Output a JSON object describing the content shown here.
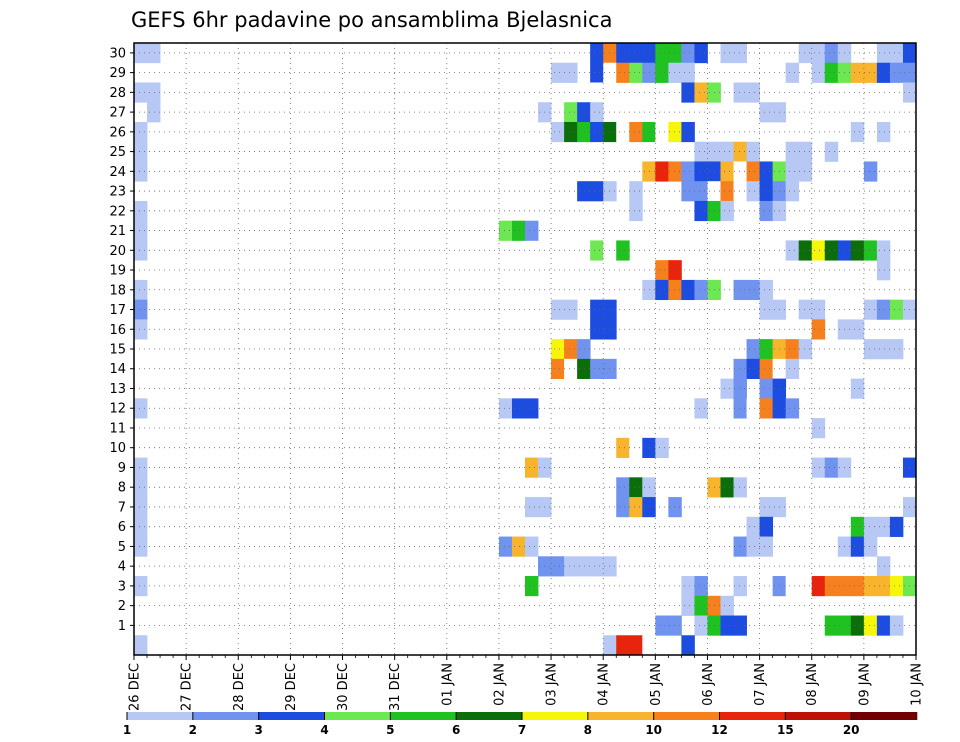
{
  "chart_data": {
    "type": "heatmap",
    "title": "GEFS 6hr padavine po ansamblima Bjelasnica",
    "xlabel": "",
    "ylabel": "",
    "x_tick_labels": [
      "26 DEC",
      "27 DEC",
      "28 DEC",
      "29 DEC",
      "30 DEC",
      "31 DEC",
      "01 JAN",
      "02 JAN",
      "03 JAN",
      "04 JAN",
      "05 JAN",
      "06 JAN",
      "07 JAN",
      "08 JAN",
      "09 JAN",
      "10 JAN"
    ],
    "y_tick_labels": [
      "1",
      "2",
      "3",
      "4",
      "5",
      "6",
      "7",
      "8",
      "9",
      "10",
      "11",
      "12",
      "13",
      "14",
      "15",
      "16",
      "17",
      "18",
      "19",
      "20",
      "21",
      "22",
      "23",
      "24",
      "25",
      "26",
      "27",
      "28",
      "29",
      "30"
    ],
    "ylim": [
      0,
      30
    ],
    "steps_per_day": 4,
    "n_steps": 60,
    "grid": true,
    "legend": {
      "position": "bottom",
      "tick_labels": [
        "1",
        "2",
        "3",
        "4",
        "5",
        "6",
        "7",
        "8",
        "10",
        "12",
        "15",
        "20"
      ],
      "colors": [
        "#b7c8f5",
        "#6f93ef",
        "#1c4ce0",
        "#6ee852",
        "#1fc220",
        "#0b6e0b",
        "#f6f60a",
        "#f7b42c",
        "#f6801e",
        "#e8240d",
        "#bd1108",
        "#730000"
      ]
    },
    "levels": [
      1,
      2,
      3,
      4,
      5,
      6,
      7,
      8,
      10,
      12,
      15,
      20
    ],
    "member_rows": [
      {
        "member": 30,
        "cells": [
          [
            0,
            1
          ],
          [
            1,
            1
          ],
          [
            35,
            3
          ],
          [
            36,
            10
          ],
          [
            37,
            3
          ],
          [
            38,
            3
          ],
          [
            39,
            3
          ],
          [
            40,
            5
          ],
          [
            41,
            5
          ],
          [
            42,
            2
          ],
          [
            43,
            3
          ],
          [
            45,
            1
          ],
          [
            46,
            1
          ],
          [
            51,
            1
          ],
          [
            52,
            1
          ],
          [
            53,
            2
          ],
          [
            54,
            1
          ],
          [
            57,
            1
          ],
          [
            58,
            1
          ],
          [
            59,
            3
          ]
        ]
      },
      {
        "member": 29,
        "cells": [
          [
            32,
            1
          ],
          [
            33,
            1
          ],
          [
            35,
            3
          ],
          [
            36,
            11
          ],
          [
            37,
            10
          ],
          [
            38,
            4
          ],
          [
            39,
            2
          ],
          [
            40,
            5
          ],
          [
            41,
            1
          ],
          [
            42,
            1
          ],
          [
            50,
            1
          ],
          [
            52,
            1
          ],
          [
            53,
            5
          ],
          [
            54,
            4
          ],
          [
            55,
            8
          ],
          [
            56,
            8
          ],
          [
            57,
            3
          ],
          [
            58,
            2
          ],
          [
            59,
            2
          ]
        ]
      },
      {
        "member": 28,
        "cells": [
          [
            0,
            1
          ],
          [
            1,
            1
          ],
          [
            35,
            9
          ],
          [
            42,
            3
          ],
          [
            43,
            8
          ],
          [
            44,
            4
          ],
          [
            46,
            1
          ],
          [
            47,
            1
          ],
          [
            59,
            1
          ]
        ]
      },
      {
        "member": 27,
        "cells": [
          [
            1,
            1
          ],
          [
            31,
            1
          ],
          [
            33,
            4
          ],
          [
            34,
            3
          ],
          [
            35,
            1
          ],
          [
            48,
            1
          ],
          [
            49,
            1
          ]
        ]
      },
      {
        "member": 26,
        "cells": [
          [
            0,
            1
          ],
          [
            32,
            1
          ],
          [
            33,
            6
          ],
          [
            34,
            5
          ],
          [
            35,
            3
          ],
          [
            36,
            6
          ],
          [
            37,
            11
          ],
          [
            38,
            10
          ],
          [
            39,
            5
          ],
          [
            40,
            11
          ],
          [
            41,
            7
          ],
          [
            42,
            3
          ],
          [
            55,
            1
          ],
          [
            57,
            1
          ]
        ]
      },
      {
        "member": 25,
        "cells": [
          [
            0,
            1
          ],
          [
            43,
            1
          ],
          [
            44,
            1
          ],
          [
            45,
            1
          ],
          [
            46,
            8
          ],
          [
            47,
            1
          ],
          [
            50,
            1
          ],
          [
            51,
            1
          ],
          [
            53,
            1
          ]
        ]
      },
      {
        "member": 24,
        "cells": [
          [
            0,
            1
          ],
          [
            39,
            8
          ],
          [
            40,
            12
          ],
          [
            41,
            10
          ],
          [
            42,
            2
          ],
          [
            43,
            3
          ],
          [
            44,
            3
          ],
          [
            45,
            8
          ],
          [
            46,
            11
          ],
          [
            47,
            10
          ],
          [
            48,
            3
          ],
          [
            49,
            4
          ],
          [
            50,
            1
          ],
          [
            51,
            1
          ],
          [
            56,
            2
          ]
        ]
      },
      {
        "member": 23,
        "cells": [
          [
            34,
            3
          ],
          [
            35,
            3
          ],
          [
            36,
            1
          ],
          [
            38,
            1
          ],
          [
            42,
            2
          ],
          [
            43,
            2
          ],
          [
            44,
            11
          ],
          [
            45,
            10
          ],
          [
            46,
            11
          ],
          [
            47,
            1
          ],
          [
            48,
            3
          ],
          [
            49,
            2
          ],
          [
            50,
            1
          ]
        ]
      },
      {
        "member": 22,
        "cells": [
          [
            0,
            1
          ],
          [
            38,
            1
          ],
          [
            43,
            3
          ],
          [
            44,
            5
          ],
          [
            45,
            1
          ],
          [
            48,
            2
          ],
          [
            49,
            1
          ]
        ]
      },
      {
        "member": 21,
        "cells": [
          [
            0,
            1
          ],
          [
            28,
            4
          ],
          [
            29,
            5
          ],
          [
            30,
            2
          ]
        ]
      },
      {
        "member": 20,
        "cells": [
          [
            0,
            1
          ],
          [
            35,
            4
          ],
          [
            36,
            11
          ],
          [
            37,
            5
          ],
          [
            50,
            1
          ],
          [
            51,
            6
          ],
          [
            52,
            7
          ],
          [
            53,
            6
          ],
          [
            54,
            3
          ],
          [
            55,
            6
          ],
          [
            56,
            5
          ],
          [
            57,
            1
          ]
        ]
      },
      {
        "member": 19,
        "cells": [
          [
            40,
            10
          ],
          [
            41,
            12
          ],
          [
            57,
            1
          ]
        ]
      },
      {
        "member": 18,
        "cells": [
          [
            0,
            1
          ],
          [
            39,
            1
          ],
          [
            40,
            3
          ],
          [
            41,
            10
          ],
          [
            42,
            3
          ],
          [
            43,
            2
          ],
          [
            44,
            4
          ],
          [
            46,
            2
          ],
          [
            47,
            2
          ],
          [
            48,
            1
          ]
        ]
      },
      {
        "member": 17,
        "cells": [
          [
            0,
            2
          ],
          [
            32,
            1
          ],
          [
            33,
            1
          ],
          [
            35,
            3
          ],
          [
            36,
            3
          ],
          [
            48,
            1
          ],
          [
            49,
            1
          ],
          [
            51,
            1
          ],
          [
            52,
            1
          ],
          [
            56,
            1
          ],
          [
            57,
            2
          ],
          [
            58,
            4
          ],
          [
            59,
            1
          ]
        ]
      },
      {
        "member": 16,
        "cells": [
          [
            0,
            1
          ],
          [
            35,
            3
          ],
          [
            36,
            3
          ],
          [
            51,
            9
          ],
          [
            52,
            10
          ],
          [
            54,
            1
          ],
          [
            55,
            1
          ]
        ]
      },
      {
        "member": 15,
        "cells": [
          [
            32,
            7
          ],
          [
            33,
            10
          ],
          [
            34,
            2
          ],
          [
            47,
            2
          ],
          [
            48,
            5
          ],
          [
            49,
            8
          ],
          [
            50,
            10
          ],
          [
            51,
            1
          ],
          [
            56,
            1
          ],
          [
            57,
            1
          ],
          [
            58,
            1
          ]
        ]
      },
      {
        "member": 14,
        "cells": [
          [
            32,
            10
          ],
          [
            33,
            11
          ],
          [
            34,
            6
          ],
          [
            35,
            2
          ],
          [
            36,
            2
          ],
          [
            46,
            2
          ],
          [
            47,
            3
          ],
          [
            48,
            10
          ],
          [
            49,
            11
          ],
          [
            50,
            1
          ]
        ]
      },
      {
        "member": 13,
        "cells": [
          [
            45,
            1
          ],
          [
            46,
            2
          ],
          [
            48,
            2
          ],
          [
            49,
            3
          ],
          [
            55,
            1
          ]
        ]
      },
      {
        "member": 12,
        "cells": [
          [
            0,
            1
          ],
          [
            28,
            1
          ],
          [
            29,
            3
          ],
          [
            30,
            3
          ],
          [
            43,
            1
          ],
          [
            46,
            2
          ],
          [
            47,
            9
          ],
          [
            48,
            10
          ],
          [
            49,
            3
          ],
          [
            50,
            2
          ]
        ]
      },
      {
        "member": 11,
        "cells": [
          [
            52,
            1
          ]
        ]
      },
      {
        "member": 10,
        "cells": [
          [
            36,
            9
          ],
          [
            37,
            8
          ],
          [
            38,
            9
          ],
          [
            39,
            3
          ],
          [
            40,
            1
          ]
        ]
      },
      {
        "member": 9,
        "cells": [
          [
            0,
            1
          ],
          [
            30,
            8
          ],
          [
            31,
            1
          ],
          [
            52,
            1
          ],
          [
            53,
            2
          ],
          [
            54,
            1
          ],
          [
            59,
            3
          ]
        ]
      },
      {
        "member": 8,
        "cells": [
          [
            0,
            1
          ],
          [
            37,
            2
          ],
          [
            38,
            6
          ],
          [
            39,
            1
          ],
          [
            44,
            8
          ],
          [
            45,
            6
          ],
          [
            46,
            1
          ]
        ]
      },
      {
        "member": 7,
        "cells": [
          [
            0,
            1
          ],
          [
            30,
            1
          ],
          [
            31,
            1
          ],
          [
            37,
            2
          ],
          [
            38,
            8
          ],
          [
            39,
            3
          ],
          [
            41,
            2
          ],
          [
            48,
            1
          ],
          [
            49,
            1
          ],
          [
            59,
            1
          ]
        ]
      },
      {
        "member": 6,
        "cells": [
          [
            0,
            1
          ],
          [
            47,
            1
          ],
          [
            48,
            3
          ],
          [
            55,
            5
          ],
          [
            56,
            1
          ],
          [
            57,
            1
          ],
          [
            58,
            3
          ]
        ]
      },
      {
        "member": 5,
        "cells": [
          [
            0,
            1
          ],
          [
            28,
            2
          ],
          [
            29,
            8
          ],
          [
            30,
            1
          ],
          [
            46,
            2
          ],
          [
            47,
            1
          ],
          [
            48,
            1
          ],
          [
            54,
            1
          ],
          [
            55,
            3
          ],
          [
            56,
            1
          ]
        ]
      },
      {
        "member": 4,
        "cells": [
          [
            31,
            2
          ],
          [
            32,
            2
          ],
          [
            33,
            1
          ],
          [
            34,
            1
          ],
          [
            35,
            1
          ],
          [
            36,
            1
          ],
          [
            57,
            1
          ]
        ]
      },
      {
        "member": 3,
        "cells": [
          [
            0,
            1
          ],
          [
            30,
            5
          ],
          [
            42,
            1
          ],
          [
            43,
            2
          ],
          [
            46,
            1
          ],
          [
            49,
            2
          ],
          [
            50,
            9
          ],
          [
            51,
            11
          ],
          [
            52,
            12
          ],
          [
            53,
            10
          ],
          [
            54,
            10
          ],
          [
            55,
            10
          ],
          [
            56,
            8
          ],
          [
            57,
            8
          ],
          [
            58,
            7
          ],
          [
            59,
            4
          ]
        ]
      },
      {
        "member": 2,
        "cells": [
          [
            42,
            1
          ],
          [
            43,
            5
          ],
          [
            44,
            10
          ],
          [
            45,
            1
          ]
        ]
      },
      {
        "member": 1,
        "cells": [
          [
            40,
            2
          ],
          [
            41,
            2
          ],
          [
            43,
            1
          ],
          [
            44,
            5
          ],
          [
            45,
            3
          ],
          [
            46,
            3
          ],
          [
            53,
            5
          ],
          [
            54,
            5
          ],
          [
            55,
            6
          ],
          [
            56,
            7
          ],
          [
            57,
            3
          ],
          [
            58,
            1
          ]
        ]
      },
      {
        "member": 0,
        "cells": [
          [
            0,
            1
          ],
          [
            36,
            1
          ],
          [
            37,
            12
          ],
          [
            38,
            12
          ],
          [
            39,
            11
          ],
          [
            42,
            3
          ]
        ]
      }
    ]
  }
}
